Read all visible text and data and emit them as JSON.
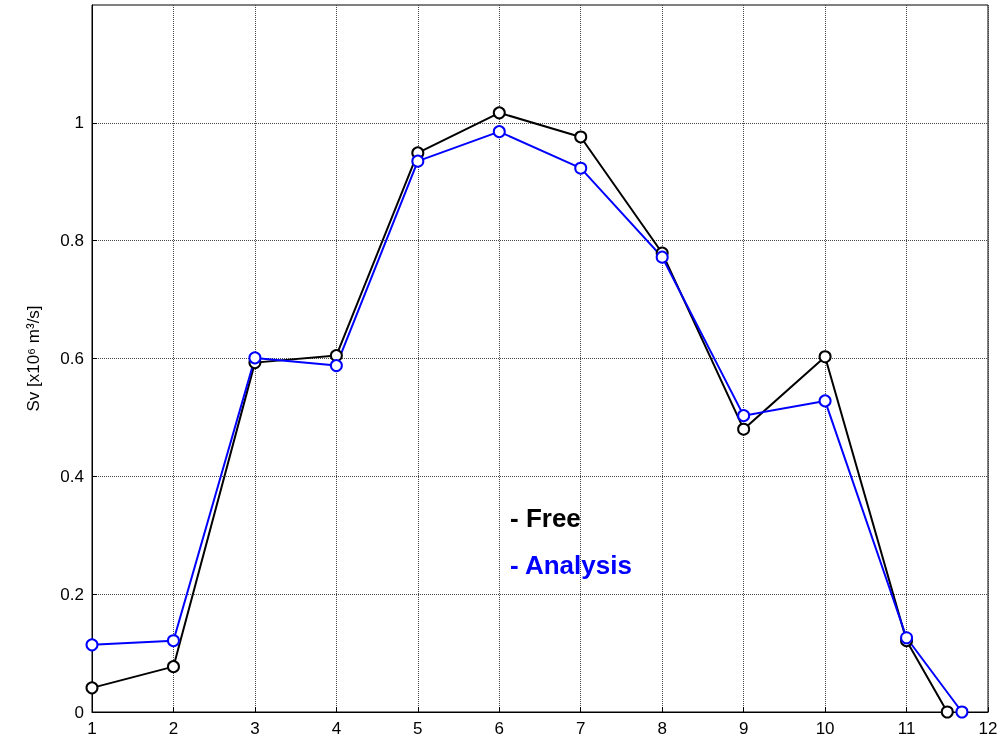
{
  "chart_data": {
    "type": "line",
    "ylabel": "Sv [x10⁶ m³/s]",
    "xlim": [
      1,
      12
    ],
    "xticks": [
      1,
      2,
      3,
      4,
      5,
      6,
      7,
      8,
      9,
      10,
      11,
      12
    ],
    "ylim": [
      0,
      1.2
    ],
    "yticks": [
      0,
      0.2,
      0.4,
      0.6,
      0.8,
      1
    ],
    "series": [
      {
        "name": "- Free",
        "color": "#000000",
        "x": [
          1,
          2,
          3,
          4,
          5,
          6,
          7,
          8,
          9,
          10,
          11,
          11.5
        ],
        "values": [
          0.041,
          0.077,
          0.593,
          0.605,
          0.949,
          1.017,
          0.976,
          0.779,
          0.48,
          0.603,
          0.121,
          0
        ]
      },
      {
        "name": "- Analysis",
        "color": "#0000ff",
        "x": [
          1,
          2,
          3,
          4,
          5,
          6,
          7,
          8,
          9,
          10,
          11,
          11.68
        ],
        "values": [
          0.114,
          0.121,
          0.601,
          0.588,
          0.935,
          0.985,
          0.923,
          0.772,
          0.503,
          0.528,
          0.126,
          0
        ]
      }
    ],
    "marker": "circle",
    "line_style": "solid",
    "grid": true
  }
}
